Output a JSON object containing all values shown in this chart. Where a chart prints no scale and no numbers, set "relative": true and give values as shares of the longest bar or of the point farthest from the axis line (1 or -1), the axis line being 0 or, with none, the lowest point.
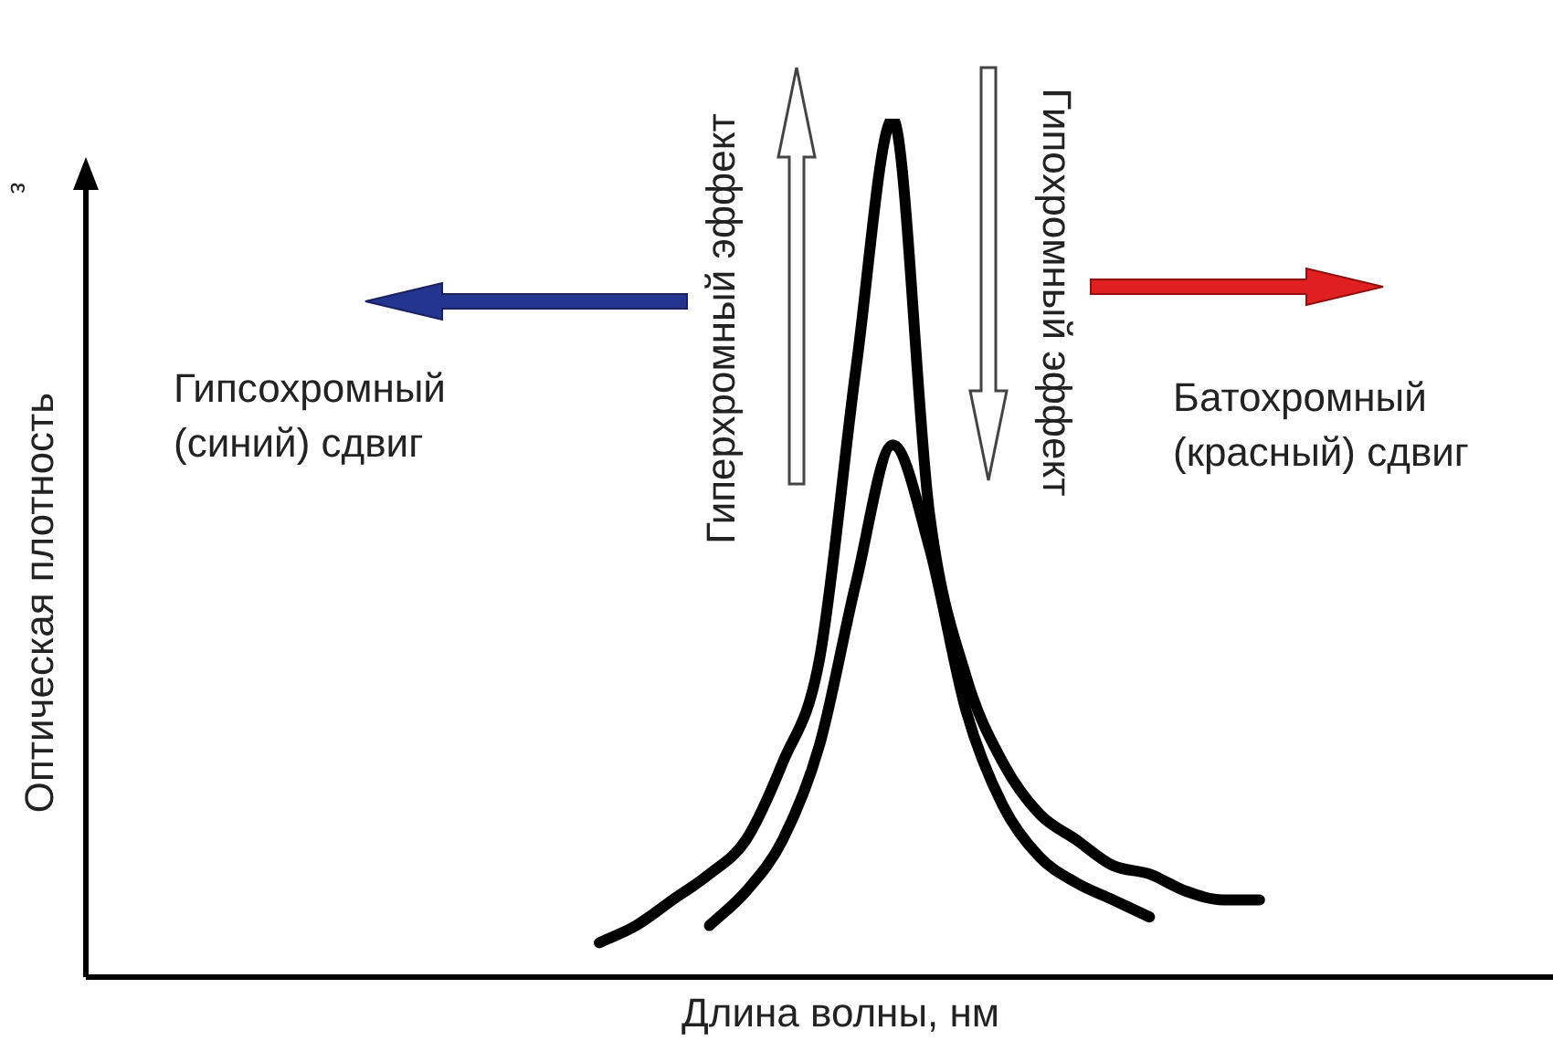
{
  "chart_data": {
    "type": "line",
    "relative": true,
    "xlabel": "Длина волны, нм",
    "ylabel": "Оптическая плотность",
    "categories": [
      null,
      null,
      null,
      null,
      null,
      null,
      null,
      null,
      null,
      null,
      null,
      null,
      null,
      null,
      null,
      null,
      null,
      null,
      null,
      null,
      null,
      null,
      null,
      null,
      null,
      null,
      null,
      null,
      null,
      null,
      null,
      null,
      null,
      null,
      null,
      null,
      null,
      null,
      null,
      null,
      null
    ],
    "series": [
      {
        "color": "#000000",
        "values": [
          null,
          null,
          null,
          null,
          null,
          null,
          null,
          null,
          null,
          null,
          null,
          null,
          null,
          null,
          0.04,
          0.06,
          0.09,
          0.12,
          0.16,
          0.25,
          0.37,
          0.71,
          1,
          0.54,
          0.35,
          0.25,
          0.19,
          0.16,
          0.13,
          0.12,
          0.1,
          0.09,
          0.09,
          null,
          null,
          null,
          null,
          null,
          null,
          null,
          null
        ]
      },
      {
        "color": "#000000",
        "values": [
          null,
          null,
          null,
          null,
          null,
          null,
          null,
          null,
          null,
          null,
          null,
          null,
          null,
          null,
          null,
          null,
          null,
          0.06,
          0.1,
          0.16,
          0.27,
          0.46,
          0.62,
          0.5,
          0.31,
          0.2,
          0.14,
          0.11,
          0.09,
          0.07,
          null,
          null,
          null,
          null,
          null,
          null,
          null,
          null,
          null,
          null,
          null
        ]
      }
    ],
    "annotations": [
      "ε",
      "Гипсохромный\n(синий) сдвиг",
      "Батохромный\n(красный) сдвиг",
      "Гиперхромный эффект",
      "Гипохромный эффект"
    ]
  }
}
